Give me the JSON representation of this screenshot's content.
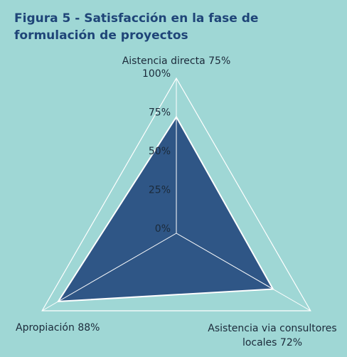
{
  "chart_data": {
    "type": "radar",
    "title": "Figura 5 - Satisfacción en la fase de formulación de proyectos",
    "categories": [
      "Aistencia directa",
      "Asistencia via consultores locales",
      "Apropiación"
    ],
    "values": [
      75,
      72,
      88
    ],
    "value_labels": [
      "75%",
      "72%",
      "88%"
    ],
    "color": "#2f5686",
    "ylim": [
      0,
      100
    ],
    "yticks": [
      {
        "value": 0,
        "label": "0%"
      },
      {
        "value": 25,
        "label": "25%"
      },
      {
        "value": 50,
        "label": "50%"
      },
      {
        "value": 75,
        "label": "75%"
      },
      {
        "value": 100,
        "label": "100%"
      }
    ],
    "grid": true
  }
}
